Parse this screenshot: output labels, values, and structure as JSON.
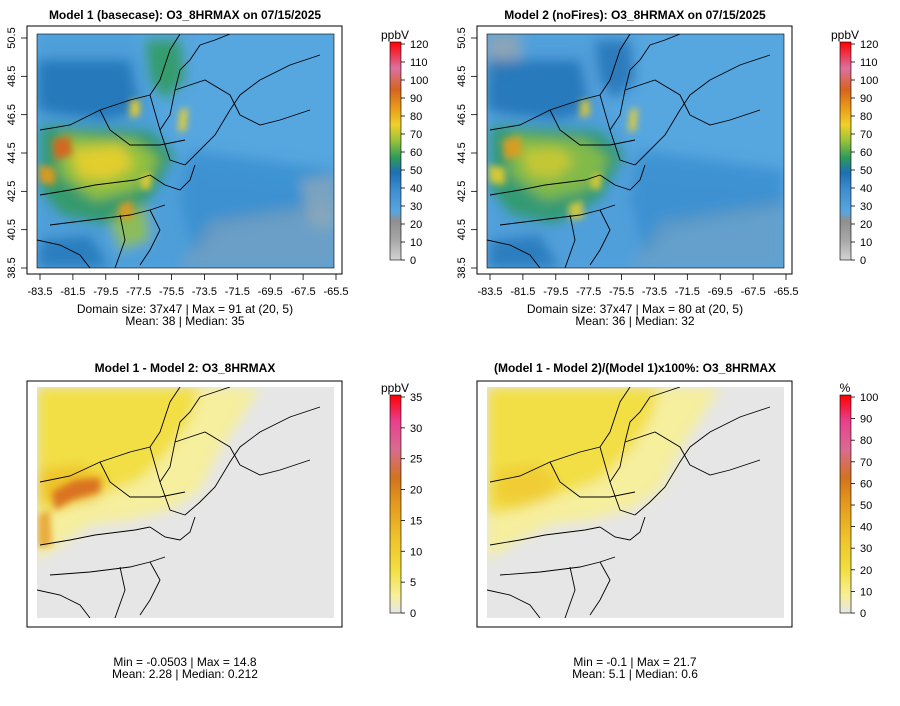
{
  "chart_data": [
    {
      "type": "heatmap",
      "id": "p1",
      "title": "Model 1 (basecase): O3_8HRMAX on 07/15/2025",
      "unit": "ppbV",
      "xticks": [
        "-83.5",
        "-81.5",
        "-79.5",
        "-77.5",
        "-75.5",
        "-73.5",
        "-71.5",
        "-69.5",
        "-67.5",
        "-65.5"
      ],
      "yticks": [
        "38.5",
        "40.5",
        "42.5",
        "44.5",
        "46.5",
        "48.5",
        "50.5"
      ],
      "xlim": [
        -83.5,
        -65.5
      ],
      "ylim": [
        38.5,
        50.5
      ],
      "scale": "conc",
      "colorbar_ticks": [
        "0",
        "10",
        "20",
        "30",
        "40",
        "50",
        "60",
        "70",
        "80",
        "90",
        "100",
        "110",
        "120"
      ],
      "colorbar_range": [
        0,
        120
      ],
      "stat_line1": "Domain size: 37x47 | Max = 91 at (20, 5)",
      "stat_line2": "Mean: 38 |  Median: 35",
      "grid_size": "37x47",
      "max": 91,
      "max_at": "(20, 5)",
      "mean": 38,
      "median": 35
    },
    {
      "type": "heatmap",
      "id": "p2",
      "title": "Model 2 (noFires): O3_8HRMAX on 07/15/2025",
      "unit": "ppbV",
      "xticks": [
        "-83.5",
        "-81.5",
        "-79.5",
        "-77.5",
        "-75.5",
        "-73.5",
        "-71.5",
        "-69.5",
        "-67.5",
        "-65.5"
      ],
      "yticks": [
        "38.5",
        "40.5",
        "42.5",
        "44.5",
        "46.5",
        "48.5",
        "50.5"
      ],
      "xlim": [
        -83.5,
        -65.5
      ],
      "ylim": [
        38.5,
        50.5
      ],
      "scale": "conc",
      "colorbar_ticks": [
        "0",
        "10",
        "20",
        "30",
        "40",
        "50",
        "60",
        "70",
        "80",
        "90",
        "100",
        "110",
        "120"
      ],
      "colorbar_range": [
        0,
        120
      ],
      "stat_line1": "Domain size: 37x47 | Max = 80 at (20, 5)",
      "stat_line2": "Mean: 36 |  Median: 32",
      "grid_size": "37x47",
      "max": 80,
      "max_at": "(20, 5)",
      "mean": 36,
      "median": 32
    },
    {
      "type": "heatmap",
      "id": "p3",
      "title": "Model 1 - Model 2: O3_8HRMAX",
      "unit": "ppbV",
      "scale": "diff",
      "colorbar_ticks": [
        "0",
        "5",
        "10",
        "15",
        "20",
        "25",
        "30",
        "35"
      ],
      "colorbar_range": [
        0,
        35
      ],
      "stat_line1": "Min = -0.0503 | Max = 14.8",
      "stat_line2": "Mean: 2.28 |  Median: 0.212",
      "min": -0.0503,
      "max": 14.8,
      "mean": 2.28,
      "median": 0.212
    },
    {
      "type": "heatmap",
      "id": "p4",
      "title": "(Model 1 - Model 2)/(Model 1)x100%: O3_8HRMAX",
      "unit": "%",
      "scale": "pct",
      "colorbar_ticks": [
        "0",
        "10",
        "20",
        "30",
        "40",
        "50",
        "60",
        "70",
        "80",
        "90",
        "100"
      ],
      "colorbar_range": [
        0,
        100
      ],
      "stat_line1": "Min = -0.1 | Max = 21.7",
      "stat_line2": "Mean: 5.1 |  Median: 0.6",
      "min": -0.1,
      "max": 21.7,
      "mean": 5.1,
      "median": 0.6
    }
  ],
  "colors": {
    "conc_scale": [
      "#d4d4d4",
      "#b5b5b5",
      "#9a9a9a",
      "#5aa5de",
      "#3e8fcf",
      "#1e6fb4",
      "#2e9a5a",
      "#9cc43a",
      "#f0d02a",
      "#e89a1a",
      "#d6641e",
      "#dc70a0",
      "#ff0000"
    ],
    "diff_scale": [
      "#e6e6e6",
      "#f7ef9a",
      "#f2de40",
      "#eec12a",
      "#e39a1e",
      "#d2731e",
      "#d86c90",
      "#e8408e",
      "#ff0000"
    ],
    "pct_scale": [
      "#e6e6e6",
      "#f7ef9a",
      "#f2de40",
      "#eec12a",
      "#e39a1e",
      "#d2731e",
      "#d86c90",
      "#e8408e",
      "#ff0000"
    ]
  }
}
